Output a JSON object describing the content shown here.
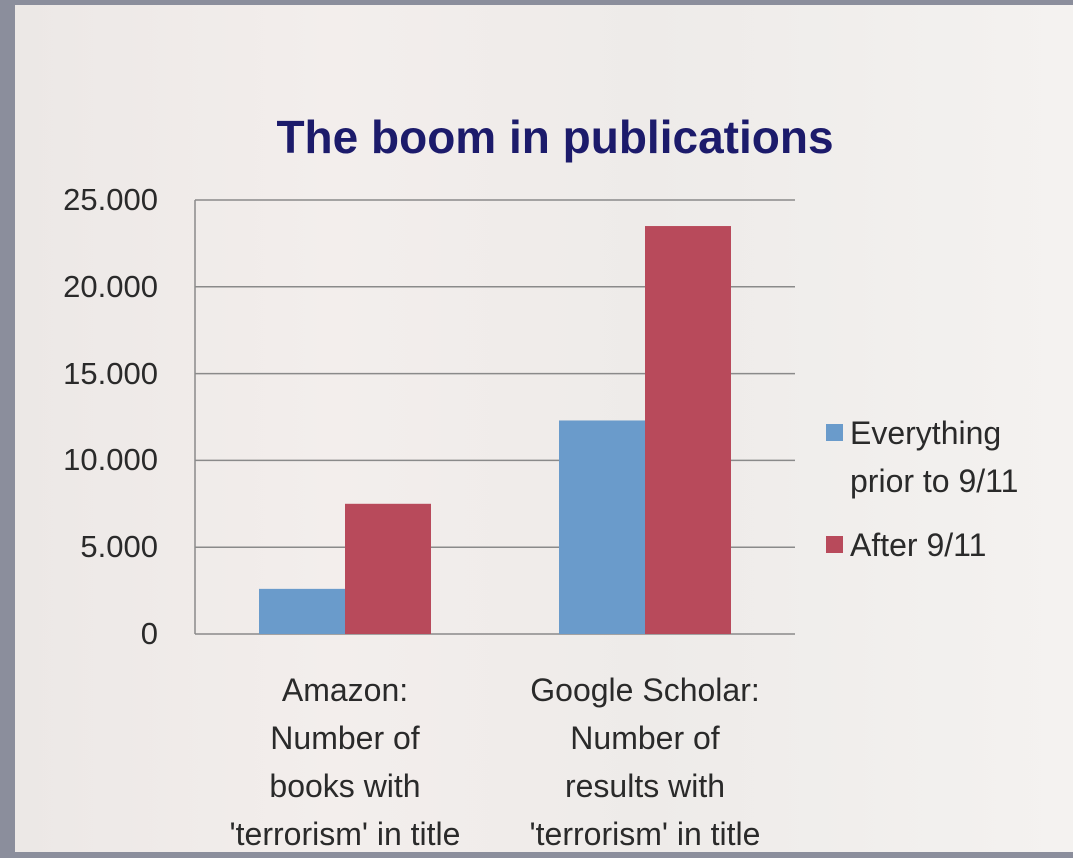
{
  "chart_data": {
    "type": "bar",
    "title": "The boom in publications",
    "categories": [
      "Amazon:\nNumber of\nbooks with\n'terrorism' in title",
      "Google Scholar:\nNumber of\nresults with\n'terrorism' in title"
    ],
    "series": [
      {
        "name": "Everything prior to 9/11",
        "color": "#6a9bcb",
        "values": [
          2600,
          12300
        ]
      },
      {
        "name": "After 9/11",
        "color": "#b84a5b",
        "values": [
          7500,
          23500
        ]
      }
    ],
    "ylim": [
      0,
      25000
    ],
    "yticks": [
      0,
      {
        "value": 5000,
        "label": "5.000"
      },
      {
        "value": 10000,
        "label": "10.000"
      },
      {
        "value": 15000,
        "label": "15.000"
      },
      {
        "value": 20000,
        "label": "20.000"
      },
      {
        "value": 25000,
        "label": "25.000"
      }
    ],
    "grid": true,
    "legend": "right"
  }
}
